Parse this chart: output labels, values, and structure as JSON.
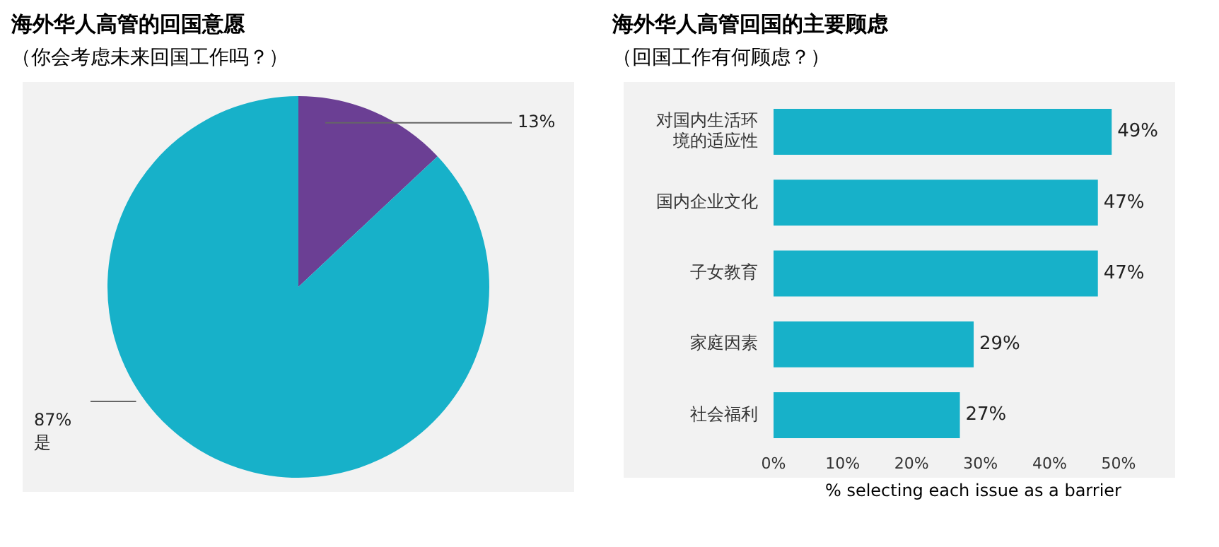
{
  "chart_data": [
    {
      "type": "pie",
      "title": "海外华人高管的回国意愿",
      "subtitle": "（你会考虑未来回国工作吗？）",
      "categories": [
        null,
        "是"
      ],
      "values": [
        13,
        87
      ],
      "colors": [
        "#6b3f94",
        "#17b1c9"
      ],
      "value_labels": [
        "13%",
        "87%"
      ]
    },
    {
      "type": "bar",
      "orientation": "horizontal",
      "title": "海外华人高管回国的主要顾虑",
      "subtitle": "（回国工作有何顾虑？）",
      "categories": [
        "对国内生活环境的适应性",
        "国内企业文化",
        "子女教育",
        "家庭因素",
        "社会福利"
      ],
      "values": [
        49,
        47,
        47,
        29,
        27
      ],
      "color": "#17b1c9",
      "xlim": [
        0,
        50
      ],
      "xticks": [
        {
          "value": 0,
          "label": "0%"
        },
        {
          "value": 10,
          "label": "10%"
        },
        {
          "value": 20,
          "label": "20%"
        },
        {
          "value": 30,
          "label": "30%"
        },
        {
          "value": 40,
          "label": "40%"
        },
        {
          "value": 50,
          "label": "50%"
        }
      ],
      "xlabel": "% selecting each issue as a barrier",
      "value_labels": [
        "49%",
        "47%",
        "47%",
        "29%",
        "27%"
      ]
    }
  ]
}
